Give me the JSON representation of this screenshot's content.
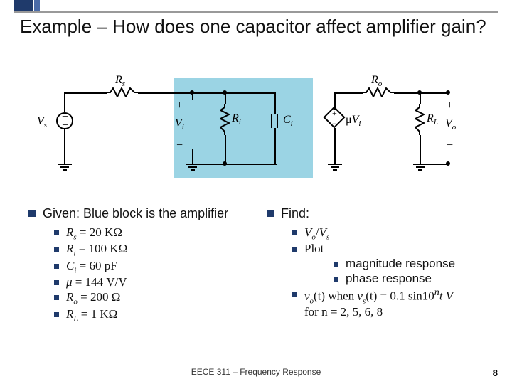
{
  "title": "Example – How does one capacitor affect amplifier gain?",
  "circuit": {
    "labels": {
      "Vs": "V",
      "Vs_sub": "s",
      "Rs": "R",
      "Rs_sub": "s",
      "Vi": "V",
      "Vi_sub": "i",
      "Ri": "R",
      "Ri_sub": "i",
      "Ci": "C",
      "Ci_sub": "i",
      "muVi_mu": "μ",
      "muVi": "V",
      "muVi_sub": "i",
      "Ro": "R",
      "Ro_sub": "o",
      "RL": "R",
      "RL_sub": "L",
      "Vo": "V",
      "Vo_sub": "o"
    }
  },
  "given": {
    "heading": "Given: Blue block is the amplifier",
    "items": [
      {
        "sym": "R",
        "sub": "s",
        "rhs": " = 20 KΩ"
      },
      {
        "sym": "R",
        "sub": "i",
        "rhs": " = 100 KΩ"
      },
      {
        "sym": "C",
        "sub": "i",
        "rhs": " = 60 pF"
      },
      {
        "sym": "μ",
        "sub": "",
        "rhs": " = 144 V/V"
      },
      {
        "sym": "R",
        "sub": "o",
        "rhs": " = 200 Ω"
      },
      {
        "sym": "R",
        "sub": "L",
        "rhs": " = 1 KΩ"
      }
    ]
  },
  "find": {
    "heading": "Find:",
    "ratio_num": "V",
    "ratio_num_sub": "o",
    "ratio_den": "V",
    "ratio_den_sub": "s",
    "plot_label": "Plot",
    "plot_items": [
      "magnitude response",
      "phase response"
    ],
    "vo_line_a": "v",
    "vo_line_a_sub": "o",
    "vo_line_mid": "(t) when ",
    "vo_line_b": "v",
    "vo_line_b_sub": "s",
    "vo_line_tail": "(t) = 0.1 sin10",
    "vo_line_sup": "n",
    "vo_line_end": "t V",
    "vo_line_2": "for n = 2, 5, 6, 8"
  },
  "footer": "EECE 311 – Frequency Response",
  "page": "8"
}
